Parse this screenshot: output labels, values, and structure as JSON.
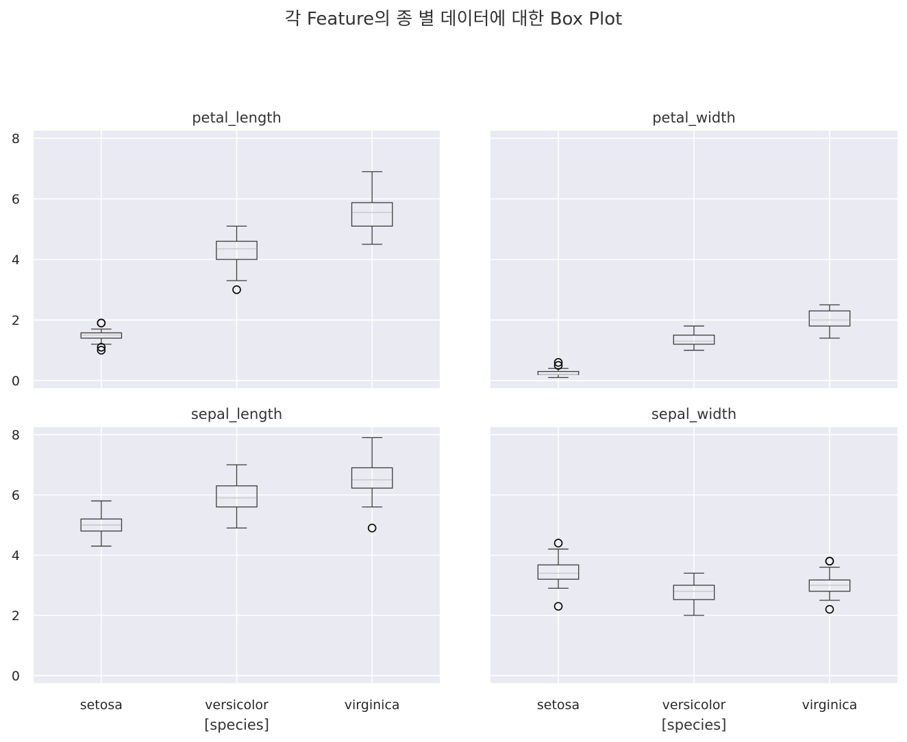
{
  "figure": {
    "suptitle": "각 Feature의 종 별 데이터에 대한 Box Plot",
    "background": "#ffffff",
    "axes_facecolor": "#eaeaf2",
    "grid_color": "#ffffff",
    "box_color": "#3b3b3b",
    "median_color": "#c8c8c8",
    "flier_color": "#000000"
  },
  "chart_data": [
    {
      "type": "box",
      "title": "petal_length",
      "categories": [
        "setosa",
        "versicolor",
        "virginica"
      ],
      "xlabel": "",
      "ylim": [
        -0.25,
        8.25
      ],
      "yticks": [
        0,
        2,
        4,
        6,
        8
      ],
      "show_yticklabels": true,
      "show_xticklabels": false,
      "boxes": [
        {
          "whislo": 1.2,
          "q1": 1.4,
          "med": 1.5,
          "q3": 1.575,
          "whishi": 1.7,
          "fliers": [
            1.9,
            1.9,
            1.1,
            1.0
          ]
        },
        {
          "whislo": 3.3,
          "q1": 4.0,
          "med": 4.35,
          "q3": 4.6,
          "whishi": 5.1,
          "fliers": [
            3.0
          ]
        },
        {
          "whislo": 4.5,
          "q1": 5.1,
          "med": 5.55,
          "q3": 5.875,
          "whishi": 6.9,
          "fliers": []
        }
      ]
    },
    {
      "type": "box",
      "title": "petal_width",
      "categories": [
        "setosa",
        "versicolor",
        "virginica"
      ],
      "xlabel": "",
      "ylim": [
        -0.25,
        8.25
      ],
      "yticks": [
        0,
        2,
        4,
        6,
        8
      ],
      "show_yticklabels": false,
      "show_xticklabels": false,
      "boxes": [
        {
          "whislo": 0.1,
          "q1": 0.2,
          "med": 0.2,
          "q3": 0.3,
          "whishi": 0.4,
          "fliers": [
            0.6,
            0.5
          ]
        },
        {
          "whislo": 1.0,
          "q1": 1.2,
          "med": 1.3,
          "q3": 1.5,
          "whishi": 1.8,
          "fliers": []
        },
        {
          "whislo": 1.4,
          "q1": 1.8,
          "med": 2.0,
          "q3": 2.3,
          "whishi": 2.5,
          "fliers": []
        }
      ]
    },
    {
      "type": "box",
      "title": "sepal_length",
      "categories": [
        "setosa",
        "versicolor",
        "virginica"
      ],
      "xlabel": "[species]",
      "ylim": [
        -0.25,
        8.25
      ],
      "yticks": [
        0,
        2,
        4,
        6,
        8
      ],
      "show_yticklabels": true,
      "show_xticklabels": true,
      "boxes": [
        {
          "whislo": 4.3,
          "q1": 4.8,
          "med": 5.0,
          "q3": 5.2,
          "whishi": 5.8,
          "fliers": []
        },
        {
          "whislo": 4.9,
          "q1": 5.6,
          "med": 5.9,
          "q3": 6.3,
          "whishi": 7.0,
          "fliers": []
        },
        {
          "whislo": 5.6,
          "q1": 6.225,
          "med": 6.5,
          "q3": 6.9,
          "whishi": 7.9,
          "fliers": [
            4.9
          ]
        }
      ]
    },
    {
      "type": "box",
      "title": "sepal_width",
      "categories": [
        "setosa",
        "versicolor",
        "virginica"
      ],
      "xlabel": "[species]",
      "ylim": [
        -0.25,
        8.25
      ],
      "yticks": [
        0,
        2,
        4,
        6,
        8
      ],
      "show_yticklabels": false,
      "show_xticklabels": true,
      "boxes": [
        {
          "whislo": 2.9,
          "q1": 3.2,
          "med": 3.4,
          "q3": 3.675,
          "whishi": 4.2,
          "fliers": [
            4.4,
            2.3
          ]
        },
        {
          "whislo": 2.0,
          "q1": 2.525,
          "med": 2.8,
          "q3": 3.0,
          "whishi": 3.4,
          "fliers": []
        },
        {
          "whislo": 2.5,
          "q1": 2.8,
          "med": 3.0,
          "q3": 3.175,
          "whishi": 3.6,
          "fliers": [
            3.8,
            3.8,
            2.2
          ]
        }
      ]
    }
  ]
}
